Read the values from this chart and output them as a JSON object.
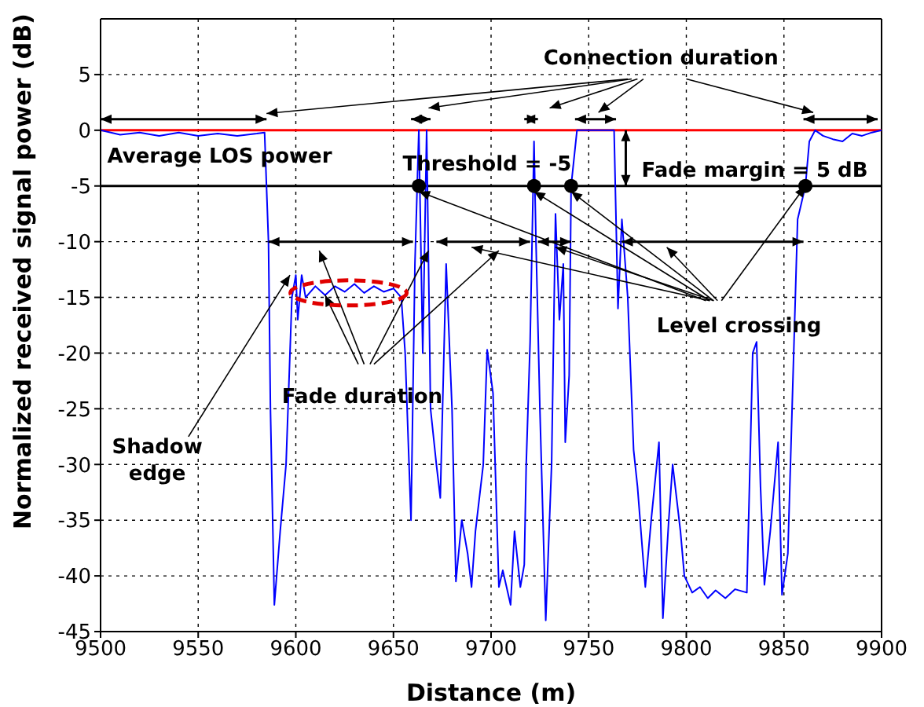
{
  "chart_data": {
    "type": "line",
    "xlabel": "Distance (m)",
    "ylabel": "Normalized received signal power (dB)",
    "x": [
      9500,
      9510,
      9520,
      9530,
      9540,
      9550,
      9560,
      9570,
      9580,
      9584,
      9586,
      9587,
      9589,
      9592,
      9595,
      9597,
      9598,
      9600,
      9601,
      9603,
      9605,
      9610,
      9615,
      9620,
      9625,
      9630,
      9635,
      9640,
      9645,
      9650,
      9654,
      9656,
      9659,
      9661,
      9663,
      9665,
      9667,
      9669,
      9672,
      9674,
      9677,
      9680,
      9682,
      9685,
      9688,
      9690,
      9692,
      9696,
      9698,
      9701,
      9704,
      9706,
      9710,
      9712,
      9715,
      9717,
      9718,
      9720,
      9722,
      9723,
      9725,
      9728,
      9731,
      9733,
      9735,
      9737,
      9738,
      9740,
      9741,
      9744,
      9750,
      9755,
      9760,
      9763,
      9765,
      9767,
      9770,
      9773,
      9775,
      9779,
      9782,
      9786,
      9788,
      9791,
      9793,
      9797,
      9799,
      9803,
      9807,
      9811,
      9815,
      9820,
      9825,
      9831,
      9834,
      9836,
      9838,
      9840,
      9843,
      9847,
      9849,
      9852,
      9855,
      9857,
      9861,
      9863,
      9866,
      9870,
      9875,
      9880,
      9885,
      9890,
      9895,
      9900
    ],
    "values": [
      0,
      -0.4,
      -0.2,
      -0.5,
      -0.2,
      -0.5,
      -0.3,
      -0.5,
      -0.3,
      -0.2,
      -10,
      -25,
      -42.6,
      -36,
      -30,
      -20,
      -15,
      -13,
      -17,
      -13,
      -15,
      -14,
      -14.8,
      -14,
      -14.5,
      -13.8,
      -14.6,
      -14,
      -14.5,
      -14.2,
      -15,
      -20,
      -35,
      -12,
      0,
      -20,
      0,
      -25,
      -30,
      -33,
      -12,
      -25,
      -40.5,
      -35,
      -38,
      -41,
      -36,
      -30,
      -19.7,
      -23.6,
      -41,
      -39.5,
      -42.6,
      -36,
      -41,
      -39,
      -30,
      -19,
      -1,
      -10,
      -25,
      -44,
      -30,
      -7.5,
      -17,
      -12,
      -28,
      -22,
      -5,
      0,
      0,
      0,
      0,
      0,
      -16,
      -8,
      -15,
      -28.7,
      -32,
      -41,
      -35,
      -28,
      -43.8,
      -35,
      -30,
      -36,
      -40,
      -41.5,
      -41,
      -42,
      -41.3,
      -42,
      -41.2,
      -41.5,
      -20,
      -19,
      -32,
      -40.8,
      -36,
      -28,
      -41.7,
      -38,
      -20,
      -8,
      -5,
      -1,
      0,
      -0.5,
      -0.8,
      -1,
      -0.3,
      -0.5,
      -0.2,
      0
    ],
    "color": "#0000ff",
    "xlim": [
      9500,
      9900
    ],
    "xticks": [
      9500,
      9550,
      9600,
      9650,
      9700,
      9750,
      9800,
      9850,
      9900
    ],
    "ylim": [
      -45,
      10
    ],
    "yticks": [
      -45,
      -40,
      -35,
      -30,
      -25,
      -20,
      -15,
      -10,
      -5,
      0,
      5
    ],
    "grid": true,
    "ref_lines": [
      {
        "axis": "y",
        "value": 0,
        "color": "#ff0000"
      },
      {
        "axis": "y",
        "value": -5,
        "label": "Threshold = -5",
        "color": "#000000"
      }
    ],
    "series": [
      {
        "type": "scatter",
        "x": [
          9663,
          9722,
          9741,
          9861
        ],
        "values": [
          -5,
          -5,
          -5,
          -5
        ],
        "color": "#000000",
        "marker": "circle"
      }
    ],
    "annotations": [
      "Connection duration",
      "Fade margin = 5 dB",
      {
        "text": "Level crossing",
        "x": 9861,
        "y": -5
      },
      {
        "text": "Fade duration",
        "x": 9615,
        "y": -14.8
      },
      {
        "text": "Shadow edge",
        "x": 9597,
        "y": -13
      },
      "Average LOS power"
    ]
  }
}
